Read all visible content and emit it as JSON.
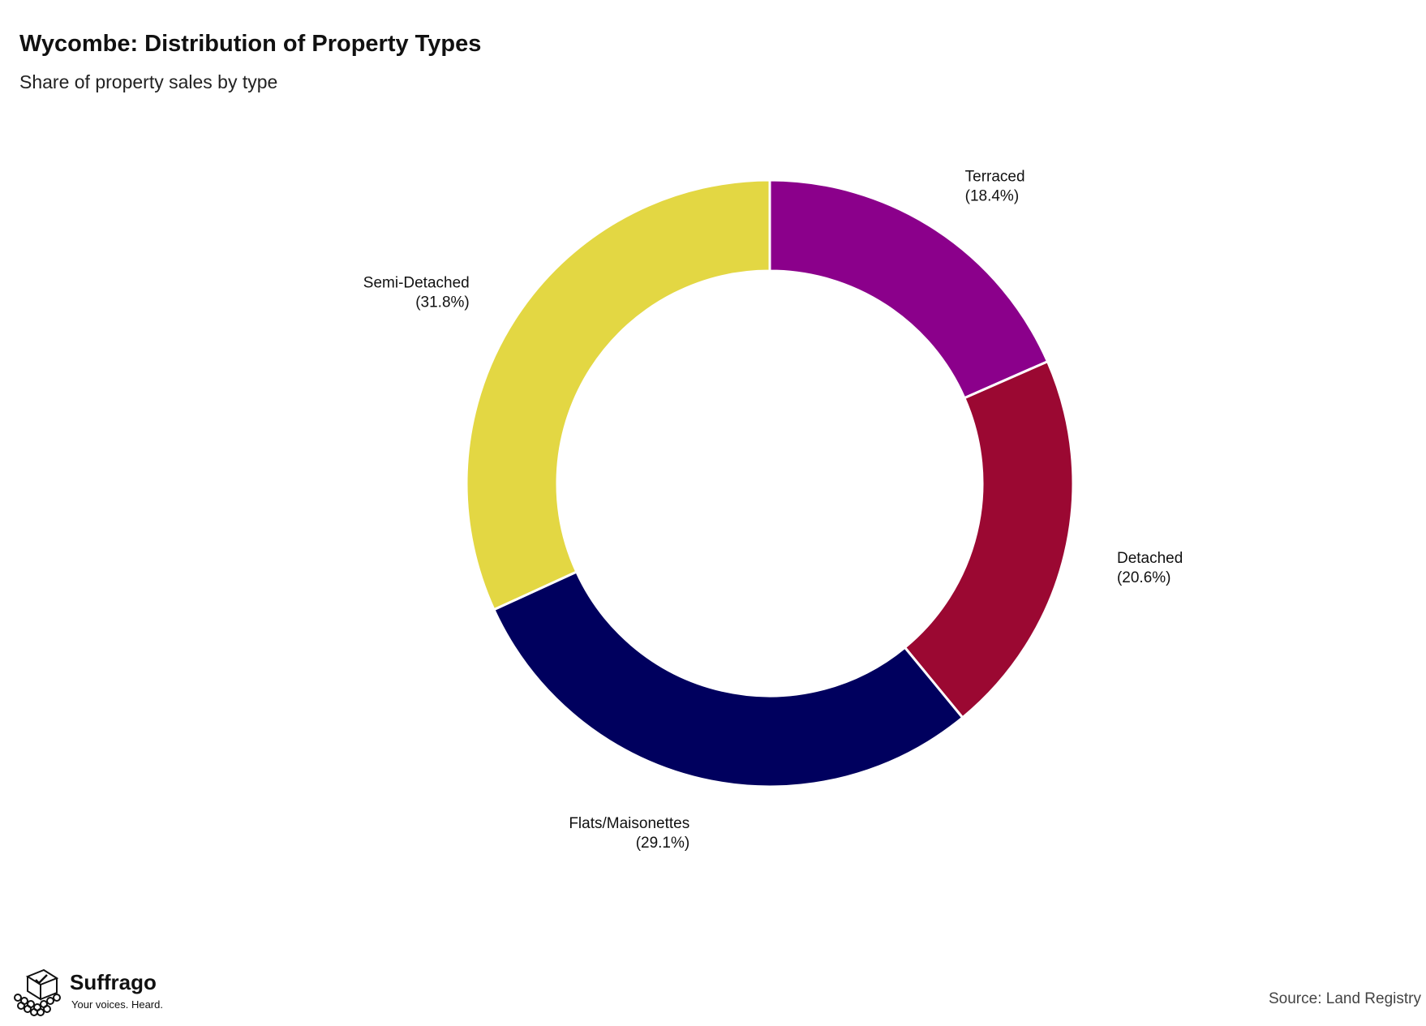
{
  "header": {
    "title": "Wycombe: Distribution of Property Types",
    "subtitle": "Share of property sales by type"
  },
  "chart_data": {
    "type": "pie",
    "donut": true,
    "title": "Wycombe: Distribution of Property Types",
    "subtitle": "Share of property sales by type",
    "start": "12 o'clock",
    "direction": "clockwise",
    "slices": [
      {
        "name": "Terraced",
        "label": "(18.4%)",
        "value": 18.4,
        "color": "#8b008b"
      },
      {
        "name": "Detached",
        "label": "(20.6%)",
        "value": 20.6,
        "color": "#9b0832"
      },
      {
        "name": "Flats/Maisonettes",
        "label": "(29.1%)",
        "value": 29.1,
        "color": "#00005e"
      },
      {
        "name": "Semi-Detached",
        "label": "(31.8%)",
        "value": 31.8,
        "color": "#e3d743"
      }
    ]
  },
  "footer": {
    "brand_name": "Suffrago",
    "brand_tagline": "Your voices. Heard.",
    "source": "Source: Land Registry",
    "brand_icon": "ballot-box-icon"
  }
}
